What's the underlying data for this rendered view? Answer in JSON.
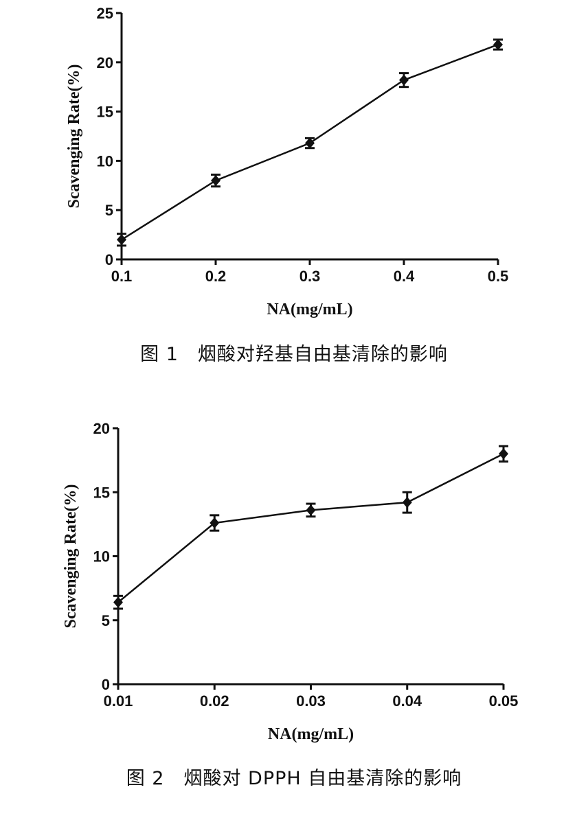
{
  "chart_data": [
    {
      "type": "line",
      "caption": "图 1　烟酸对羟基自由基清除的影响",
      "xlabel": "NA(mg/mL)",
      "ylabel": "Scavenging Rate(%)",
      "x_ticks": [
        "0.1",
        "0.2",
        "0.3",
        "0.4",
        "0.5"
      ],
      "y_ticks": [
        "0",
        "5",
        "10",
        "15",
        "20",
        "25"
      ],
      "xlim": [
        0.1,
        0.5
      ],
      "ylim": [
        0,
        25
      ],
      "grid": false,
      "series": [
        {
          "x": [
            0.1,
            0.2,
            0.3,
            0.4,
            0.5
          ],
          "values": [
            2.0,
            8.0,
            11.8,
            18.2,
            21.8
          ],
          "error": [
            0.6,
            0.6,
            0.5,
            0.7,
            0.5
          ]
        }
      ]
    },
    {
      "type": "line",
      "caption": "图 2　烟酸对 DPPH 自由基清除的影响",
      "xlabel": "NA(mg/mL)",
      "ylabel": "Scavenging Rate(%)",
      "x_ticks": [
        "0.01",
        "0.02",
        "0.03",
        "0.04",
        "0.05"
      ],
      "y_ticks": [
        "0",
        "5",
        "10",
        "15",
        "20"
      ],
      "xlim": [
        0.01,
        0.05
      ],
      "ylim": [
        0,
        20
      ],
      "grid": false,
      "series": [
        {
          "x": [
            0.01,
            0.02,
            0.03,
            0.04,
            0.05
          ],
          "values": [
            6.4,
            12.6,
            13.6,
            14.2,
            18.0
          ],
          "error": [
            0.5,
            0.6,
            0.5,
            0.8,
            0.6
          ]
        }
      ]
    }
  ]
}
